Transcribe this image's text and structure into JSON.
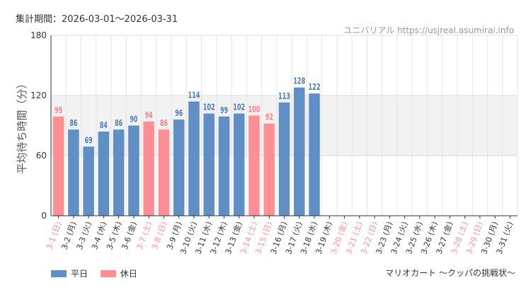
{
  "header": {
    "period": "集計期間：2026-03-01〜2026-03-31",
    "source": "ユニバリアル  https://usjreal.asumirai.info"
  },
  "colors": {
    "weekday": "#5f8fc4",
    "holiday": "#ff8f94",
    "weekday_label": "#4d7db5",
    "holiday_label": "#ff7f85",
    "band": "#f2f2f2",
    "grid": "#e6e6e6"
  },
  "legend": {
    "weekday": "平日",
    "holiday": "休日"
  },
  "chart_data": {
    "type": "bar",
    "title": "マリオカート 〜クッパの挑戦状〜",
    "ylabel": "平均待ち時間（分）",
    "xlabel": "",
    "ylim": [
      0,
      180
    ],
    "yticks": [
      0,
      60,
      120,
      180
    ],
    "band": [
      60,
      120
    ],
    "categories": [
      "3-1 (日)",
      "3-2 (月)",
      "3-3 (火)",
      "3-4 (水)",
      "3-5 (木)",
      "3-6 (金)",
      "3-7 (土)",
      "3-8 (日)",
      "3-9 (月)",
      "3-10 (火)",
      "3-11 (水)",
      "3-12 (木)",
      "3-13 (金)",
      "3-14 (土)",
      "3-15 (日)",
      "3-16 (月)",
      "3-17 (火)",
      "3-18 (水)",
      "3-19 (木)",
      "3-20 (金)",
      "3-21 (土)",
      "3-22 (日)",
      "3-23 (月)",
      "3-24 (火)",
      "3-25 (水)",
      "3-26 (木)",
      "3-27 (金)",
      "3-28 (土)",
      "3-29 (日)",
      "3-30 (月)",
      "3-31 (火)"
    ],
    "holiday": [
      true,
      false,
      false,
      false,
      false,
      false,
      true,
      true,
      false,
      false,
      false,
      false,
      false,
      true,
      true,
      false,
      false,
      false,
      false,
      true,
      true,
      true,
      false,
      false,
      false,
      false,
      false,
      true,
      true,
      false,
      false
    ],
    "series": [
      {
        "name": "平均待ち時間",
        "values": [
          99,
          86,
          69,
          84,
          86,
          90,
          94,
          86,
          96,
          114,
          102,
          99,
          102,
          100,
          92,
          113,
          128,
          122,
          null,
          null,
          null,
          null,
          null,
          null,
          null,
          null,
          null,
          null,
          null,
          null,
          null
        ]
      }
    ]
  }
}
